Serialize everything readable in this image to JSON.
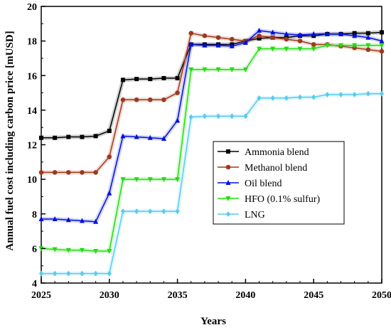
{
  "chart_data": {
    "type": "line",
    "title": "",
    "xlabel": "Years",
    "ylabel": "Annual fuel cost including carbon price [mUSD]",
    "xlim": [
      2025,
      2050
    ],
    "ylim": [
      4,
      20
    ],
    "xticks": [
      "2025",
      "2030",
      "2035",
      "2040",
      "2045",
      "2050"
    ],
    "yticks": [
      "4",
      "6",
      "8",
      "10",
      "12",
      "14",
      "16",
      "18",
      "20"
    ],
    "x": [
      2025,
      2026,
      2027,
      2028,
      2029,
      2030,
      2031,
      2032,
      2033,
      2034,
      2035,
      2036,
      2037,
      2038,
      2039,
      2040,
      2041,
      2042,
      2043,
      2044,
      2045,
      2046,
      2047,
      2048,
      2049,
      2050
    ],
    "legend_position": "center-right",
    "grid": false,
    "series": [
      {
        "name": "Ammonia blend",
        "color": "#000000",
        "marker": "square",
        "values": [
          12.4,
          12.4,
          12.45,
          12.45,
          12.5,
          12.8,
          15.75,
          15.8,
          15.8,
          15.85,
          15.85,
          17.8,
          17.8,
          17.8,
          17.8,
          18.0,
          18.15,
          18.2,
          18.2,
          18.3,
          18.3,
          18.4,
          18.4,
          18.45,
          18.45,
          18.5
        ]
      },
      {
        "name": "Methanol blend",
        "color": "#a0381e",
        "marker": "circle",
        "values": [
          10.4,
          10.4,
          10.4,
          10.4,
          10.4,
          11.3,
          14.6,
          14.6,
          14.6,
          14.6,
          15.0,
          18.45,
          18.3,
          18.2,
          18.1,
          18.0,
          18.3,
          18.2,
          18.1,
          18.0,
          17.8,
          17.8,
          17.7,
          17.6,
          17.5,
          17.4
        ]
      },
      {
        "name": "Oil blend",
        "color": "#0010dd",
        "marker": "triangle",
        "values": [
          7.7,
          7.7,
          7.65,
          7.6,
          7.55,
          9.2,
          12.5,
          12.45,
          12.4,
          12.35,
          13.4,
          17.8,
          17.75,
          17.75,
          17.7,
          17.9,
          18.6,
          18.5,
          18.4,
          18.35,
          18.4,
          18.4,
          18.4,
          18.3,
          18.2,
          18.0
        ]
      },
      {
        "name": "HFO (0.1% sulfur)",
        "color": "#22dd11",
        "marker": "triangle-down",
        "values": [
          6.0,
          5.95,
          5.9,
          5.9,
          5.85,
          5.85,
          10.0,
          10.0,
          10.0,
          10.0,
          10.0,
          16.35,
          16.35,
          16.35,
          16.35,
          16.35,
          17.55,
          17.55,
          17.55,
          17.55,
          17.55,
          17.75,
          17.75,
          17.75,
          17.75,
          17.75
        ]
      },
      {
        "name": "LNG",
        "color": "#55ccee",
        "marker": "diamond",
        "values": [
          4.55,
          4.55,
          4.55,
          4.55,
          4.55,
          4.55,
          8.15,
          8.15,
          8.15,
          8.15,
          8.15,
          13.6,
          13.65,
          13.65,
          13.65,
          13.65,
          14.7,
          14.7,
          14.7,
          14.75,
          14.75,
          14.9,
          14.9,
          14.9,
          14.95,
          14.95
        ]
      }
    ]
  }
}
